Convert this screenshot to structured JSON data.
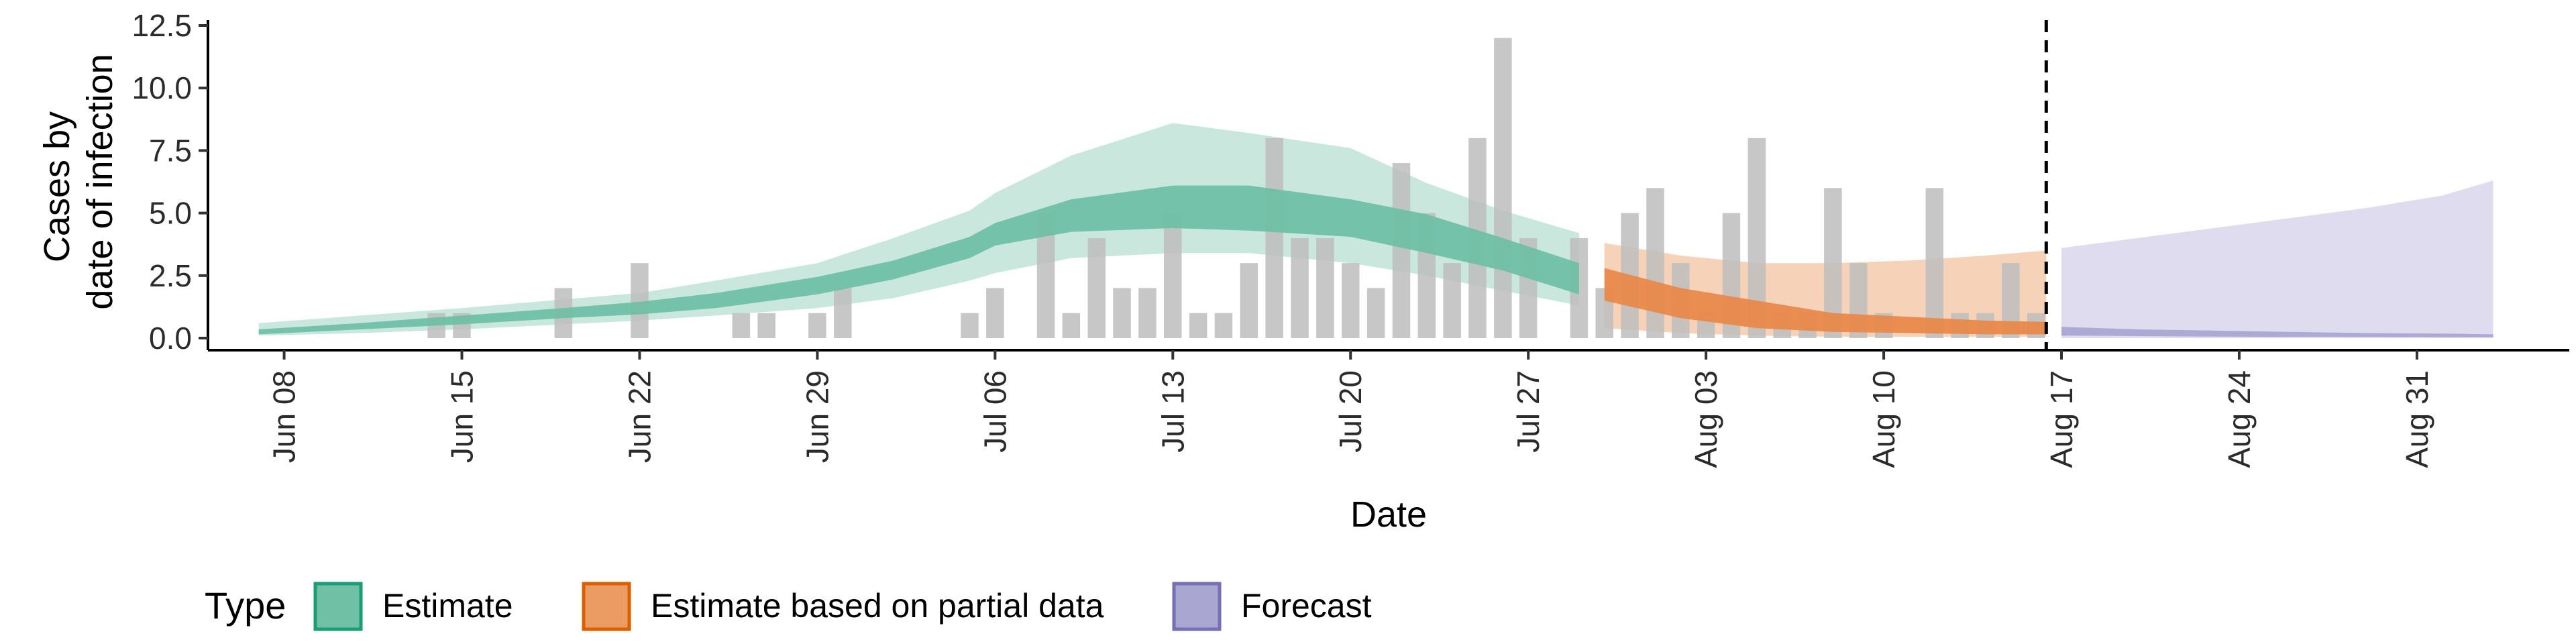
{
  "chart_data": {
    "type": "area",
    "xlabel": "Date",
    "ylabel_lines": [
      "Cases by",
      "date of infection"
    ],
    "ylim": [
      0,
      12.5
    ],
    "yticks": [
      "0.0",
      "2.5",
      "5.0",
      "7.5",
      "10.0",
      "12.5"
    ],
    "xlim_days": [
      -3,
      90
    ],
    "xticks": [
      {
        "label": "Jun 08",
        "day": 0
      },
      {
        "label": "Jun 15",
        "day": 7
      },
      {
        "label": "Jun 22",
        "day": 14
      },
      {
        "label": "Jun 29",
        "day": 21
      },
      {
        "label": "Jul 06",
        "day": 28
      },
      {
        "label": "Jul 13",
        "day": 35
      },
      {
        "label": "Jul 20",
        "day": 42
      },
      {
        "label": "Jul 27",
        "day": 49
      },
      {
        "label": "Aug 03",
        "day": 56
      },
      {
        "label": "Aug 10",
        "day": 63
      },
      {
        "label": "Aug 17",
        "day": 70
      },
      {
        "label": "Aug 24",
        "day": 77
      },
      {
        "label": "Aug 31",
        "day": 84
      }
    ],
    "vline_day": 69.4,
    "legend": {
      "title": "Type",
      "position": "bottom",
      "entries": [
        {
          "label": "Estimate",
          "fill": "#70c0a5",
          "stroke": "#1b9e77"
        },
        {
          "label": "Estimate based on partial data",
          "fill": "#eb9c63",
          "stroke": "#d95f02"
        },
        {
          "label": "Forecast",
          "fill": "#a9a6d2",
          "stroke": "#7570b3"
        }
      ]
    },
    "colors": {
      "bars": "#bdbdbd",
      "estimate_outer": "#c6e6da",
      "estimate_inner": "#70c0a5",
      "partial_outer": "#f5d1b4",
      "partial_inner": "#e8894a",
      "forecast_outer": "#dcdaed",
      "forecast_inner": "#a9a6d2"
    },
    "observed_cases": {
      "days": [
        6,
        7,
        11,
        14,
        18,
        19,
        21,
        22,
        27,
        28,
        30,
        31,
        32,
        33,
        34,
        35,
        36,
        37,
        38,
        39,
        40,
        41,
        42,
        43,
        44,
        45,
        46,
        47,
        48,
        49,
        51,
        52,
        53,
        54,
        55,
        56,
        57,
        58,
        59,
        60,
        61,
        62,
        63,
        65,
        66,
        67,
        68,
        69
      ],
      "values": [
        1,
        1,
        2,
        3,
        1,
        1,
        1,
        2,
        1,
        2,
        5,
        1,
        4,
        2,
        2,
        5,
        1,
        1,
        3,
        8,
        4,
        4,
        3,
        2,
        7,
        5,
        3,
        8,
        12,
        4,
        4,
        2,
        5,
        6,
        3,
        1,
        5,
        8,
        1,
        1,
        6,
        3,
        1,
        6,
        1,
        1,
        3,
        1
      ]
    },
    "series": [
      {
        "name": "Estimate",
        "x": [
          -1,
          3,
          7,
          11,
          14,
          17,
          21,
          24,
          27,
          28,
          31,
          35,
          38,
          42,
          45,
          48,
          51
        ],
        "lower90": [
          0.1,
          0.2,
          0.35,
          0.55,
          0.7,
          0.9,
          1.2,
          1.6,
          2.3,
          2.6,
          3.2,
          3.4,
          3.4,
          3.0,
          2.5,
          1.9,
          1.3
        ],
        "upper90": [
          0.6,
          0.9,
          1.2,
          1.55,
          1.8,
          2.3,
          3.0,
          4.0,
          5.1,
          5.8,
          7.3,
          8.6,
          8.2,
          7.6,
          6.2,
          5.1,
          4.2
        ],
        "lower50": [
          0.15,
          0.35,
          0.55,
          0.8,
          0.95,
          1.2,
          1.75,
          2.35,
          3.2,
          3.7,
          4.25,
          4.4,
          4.3,
          4.05,
          3.4,
          2.7,
          1.75
        ],
        "upper50": [
          0.35,
          0.6,
          0.9,
          1.2,
          1.45,
          1.8,
          2.45,
          3.1,
          4.05,
          4.6,
          5.55,
          6.1,
          6.1,
          5.55,
          4.95,
          4.0,
          3.0
        ]
      },
      {
        "name": "Estimate based on partial data",
        "x": [
          52,
          55,
          58,
          61,
          64,
          67,
          69.4
        ],
        "lower90": [
          0.4,
          0.2,
          0.1,
          0.05,
          0.05,
          0.05,
          0.05
        ],
        "upper90": [
          3.8,
          3.3,
          3.0,
          3.0,
          3.1,
          3.3,
          3.5
        ],
        "lower50": [
          1.5,
          0.8,
          0.4,
          0.25,
          0.2,
          0.15,
          0.15
        ],
        "upper50": [
          2.8,
          2.0,
          1.5,
          1.0,
          0.85,
          0.7,
          0.65
        ]
      },
      {
        "name": "Forecast",
        "x": [
          70,
          73,
          76,
          79,
          82,
          85,
          87
        ],
        "lower90": [
          0.0,
          0.0,
          0.0,
          0.0,
          0.0,
          0.0,
          0.0
        ],
        "upper90": [
          3.6,
          4.0,
          4.4,
          4.8,
          5.2,
          5.7,
          6.3
        ],
        "lower50": [
          0.1,
          0.08,
          0.06,
          0.05,
          0.05,
          0.04,
          0.04
        ],
        "upper50": [
          0.45,
          0.35,
          0.3,
          0.25,
          0.2,
          0.18,
          0.15
        ]
      }
    ]
  }
}
